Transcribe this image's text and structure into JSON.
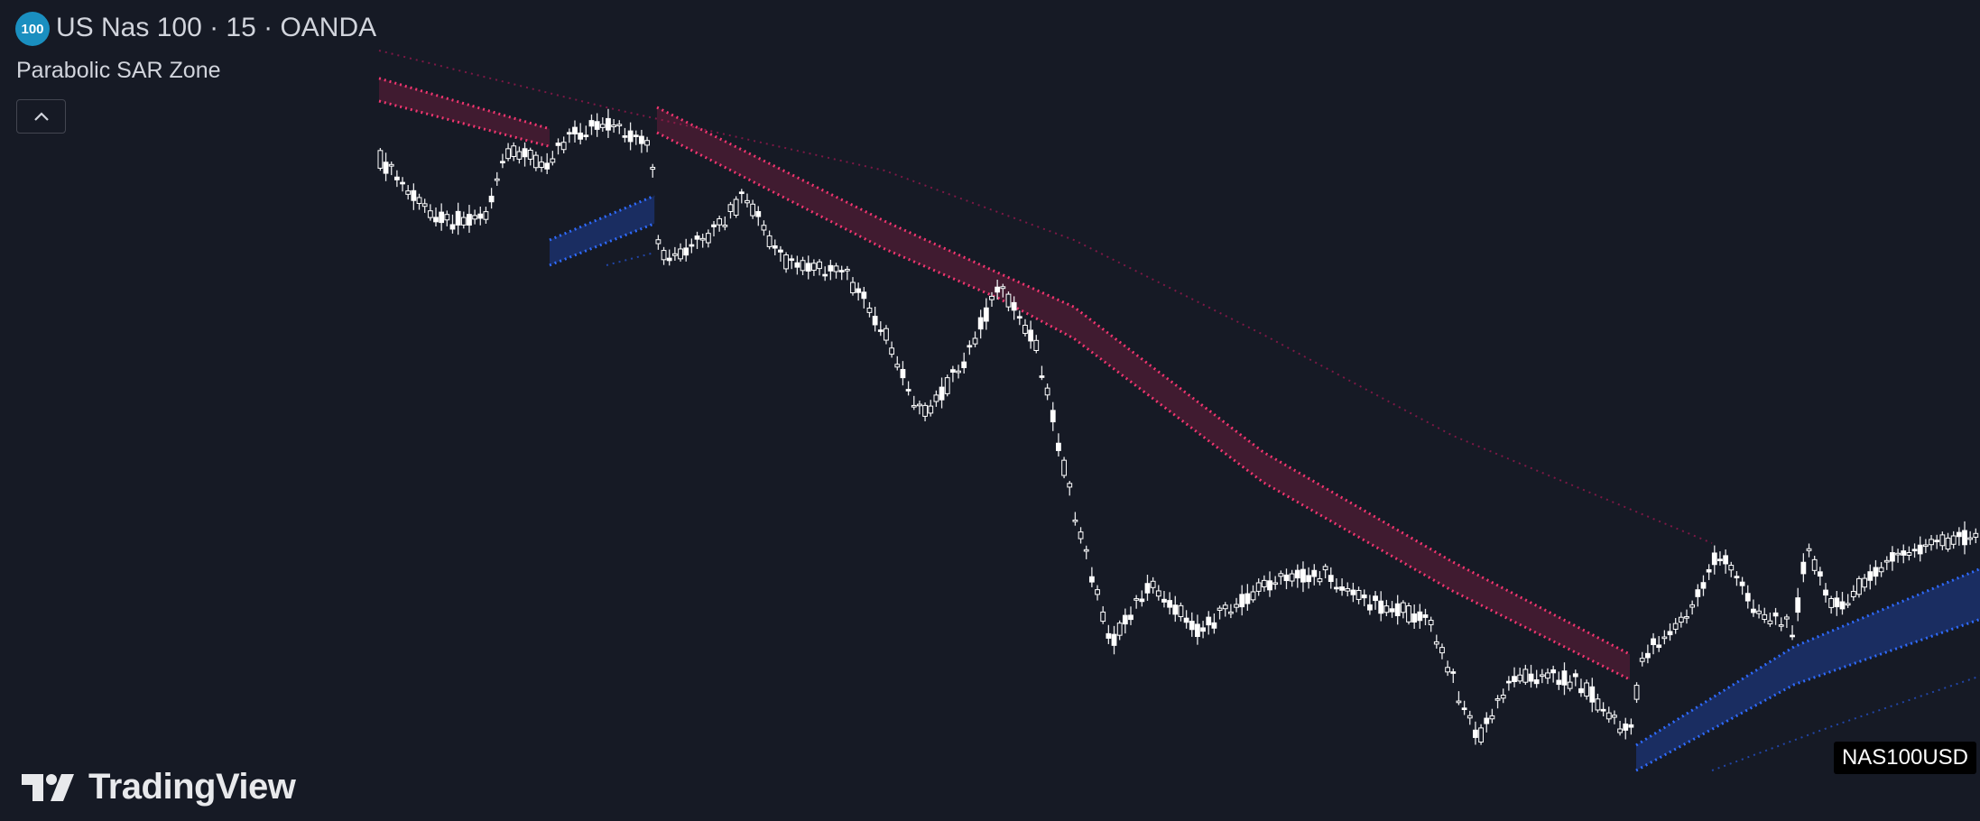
{
  "header": {
    "badge": "100",
    "title": "US Nas 100 · 15 · OANDA"
  },
  "indicator": {
    "name": "Parabolic SAR Zone"
  },
  "branding": {
    "logo_text": "TradingView"
  },
  "symbol_label": "NAS100USD"
}
